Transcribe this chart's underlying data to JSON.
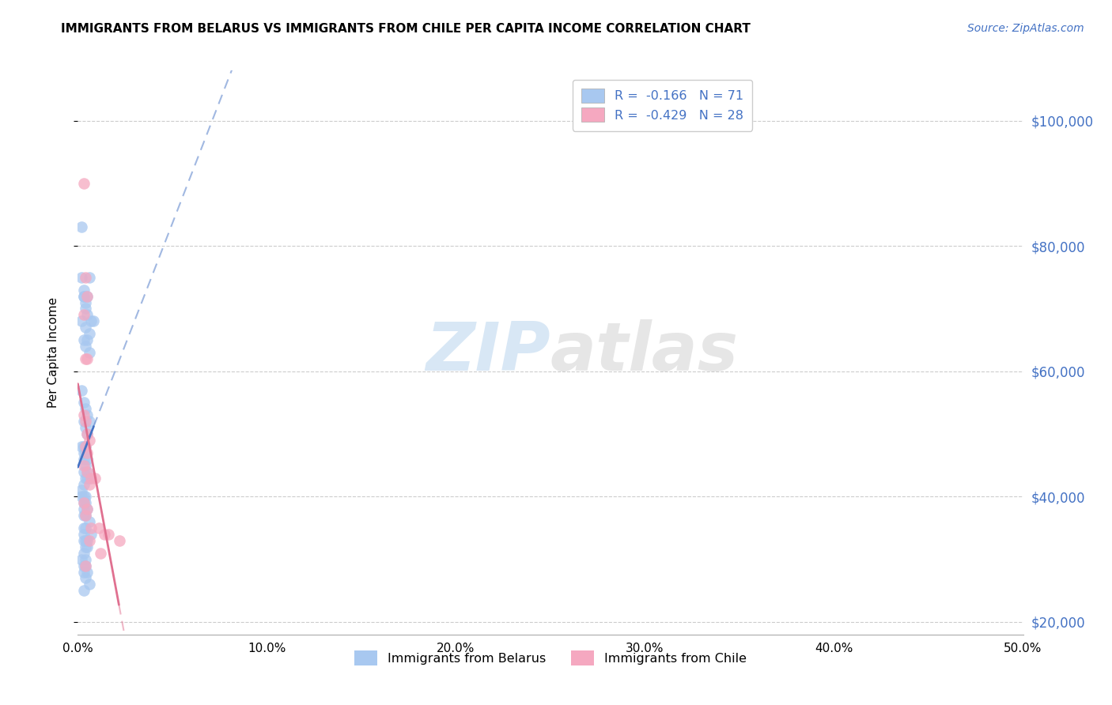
{
  "title": "IMMIGRANTS FROM BELARUS VS IMMIGRANTS FROM CHILE PER CAPITA INCOME CORRELATION CHART",
  "source": "Source: ZipAtlas.com",
  "ylabel": "Per Capita Income",
  "ylim": [
    18000,
    108000
  ],
  "xlim": [
    0.0,
    0.5
  ],
  "legend_R_belarus": "R =  -0.166",
  "legend_N_belarus": "N = 71",
  "legend_R_chile": "R =  -0.429",
  "legend_N_chile": "N = 28",
  "color_belarus": "#A8C8F0",
  "color_chile": "#F5A8C0",
  "color_line_belarus": "#4472C4",
  "color_line_chile": "#E07090",
  "color_right_axis": "#4472C4",
  "watermark_zip": "ZIP",
  "watermark_atlas": "atlas",
  "belarus_x": [
    0.003,
    0.004,
    0.005,
    0.006,
    0.007,
    0.008,
    0.003,
    0.004,
    0.005,
    0.006,
    0.002,
    0.003,
    0.004,
    0.005,
    0.006,
    0.002,
    0.003,
    0.004,
    0.002,
    0.003,
    0.004,
    0.005,
    0.003,
    0.004,
    0.005,
    0.006,
    0.003,
    0.004,
    0.003,
    0.002,
    0.004,
    0.005,
    0.003,
    0.004,
    0.003,
    0.005,
    0.006,
    0.004,
    0.003,
    0.005,
    0.002,
    0.003,
    0.004,
    0.002,
    0.003,
    0.004,
    0.003,
    0.005,
    0.004,
    0.003,
    0.006,
    0.004,
    0.003,
    0.007,
    0.003,
    0.004,
    0.003,
    0.005,
    0.004,
    0.005,
    0.003,
    0.004,
    0.002,
    0.003,
    0.004,
    0.005,
    0.003,
    0.004,
    0.006,
    0.003,
    0.002
  ],
  "belarus_y": [
    72000,
    70000,
    72000,
    75000,
    68000,
    68000,
    73000,
    67000,
    65000,
    63000,
    75000,
    72000,
    71000,
    69000,
    66000,
    68000,
    65000,
    64000,
    57000,
    55000,
    54000,
    53000,
    52000,
    51000,
    50000,
    52000,
    48000,
    48000,
    47000,
    48000,
    47000,
    46000,
    46000,
    45000,
    44000,
    44000,
    43000,
    43000,
    42000,
    43000,
    41000,
    40000,
    40000,
    40000,
    39000,
    39000,
    38000,
    38000,
    37000,
    37000,
    36000,
    35000,
    35000,
    34000,
    34000,
    33000,
    33000,
    33000,
    32000,
    32000,
    31000,
    30000,
    30000,
    29000,
    29000,
    28000,
    28000,
    27000,
    26000,
    25000,
    83000
  ],
  "chile_x": [
    0.003,
    0.004,
    0.005,
    0.003,
    0.004,
    0.005,
    0.003,
    0.004,
    0.005,
    0.006,
    0.004,
    0.005,
    0.003,
    0.005,
    0.007,
    0.009,
    0.006,
    0.003,
    0.005,
    0.004,
    0.011,
    0.007,
    0.014,
    0.006,
    0.016,
    0.012,
    0.022,
    0.004
  ],
  "chile_y": [
    90000,
    75000,
    72000,
    69000,
    62000,
    62000,
    53000,
    52000,
    50000,
    49000,
    48000,
    47000,
    45000,
    44000,
    43000,
    43000,
    42000,
    39000,
    38000,
    37000,
    35000,
    35000,
    34000,
    33000,
    34000,
    31000,
    33000,
    29000
  ]
}
